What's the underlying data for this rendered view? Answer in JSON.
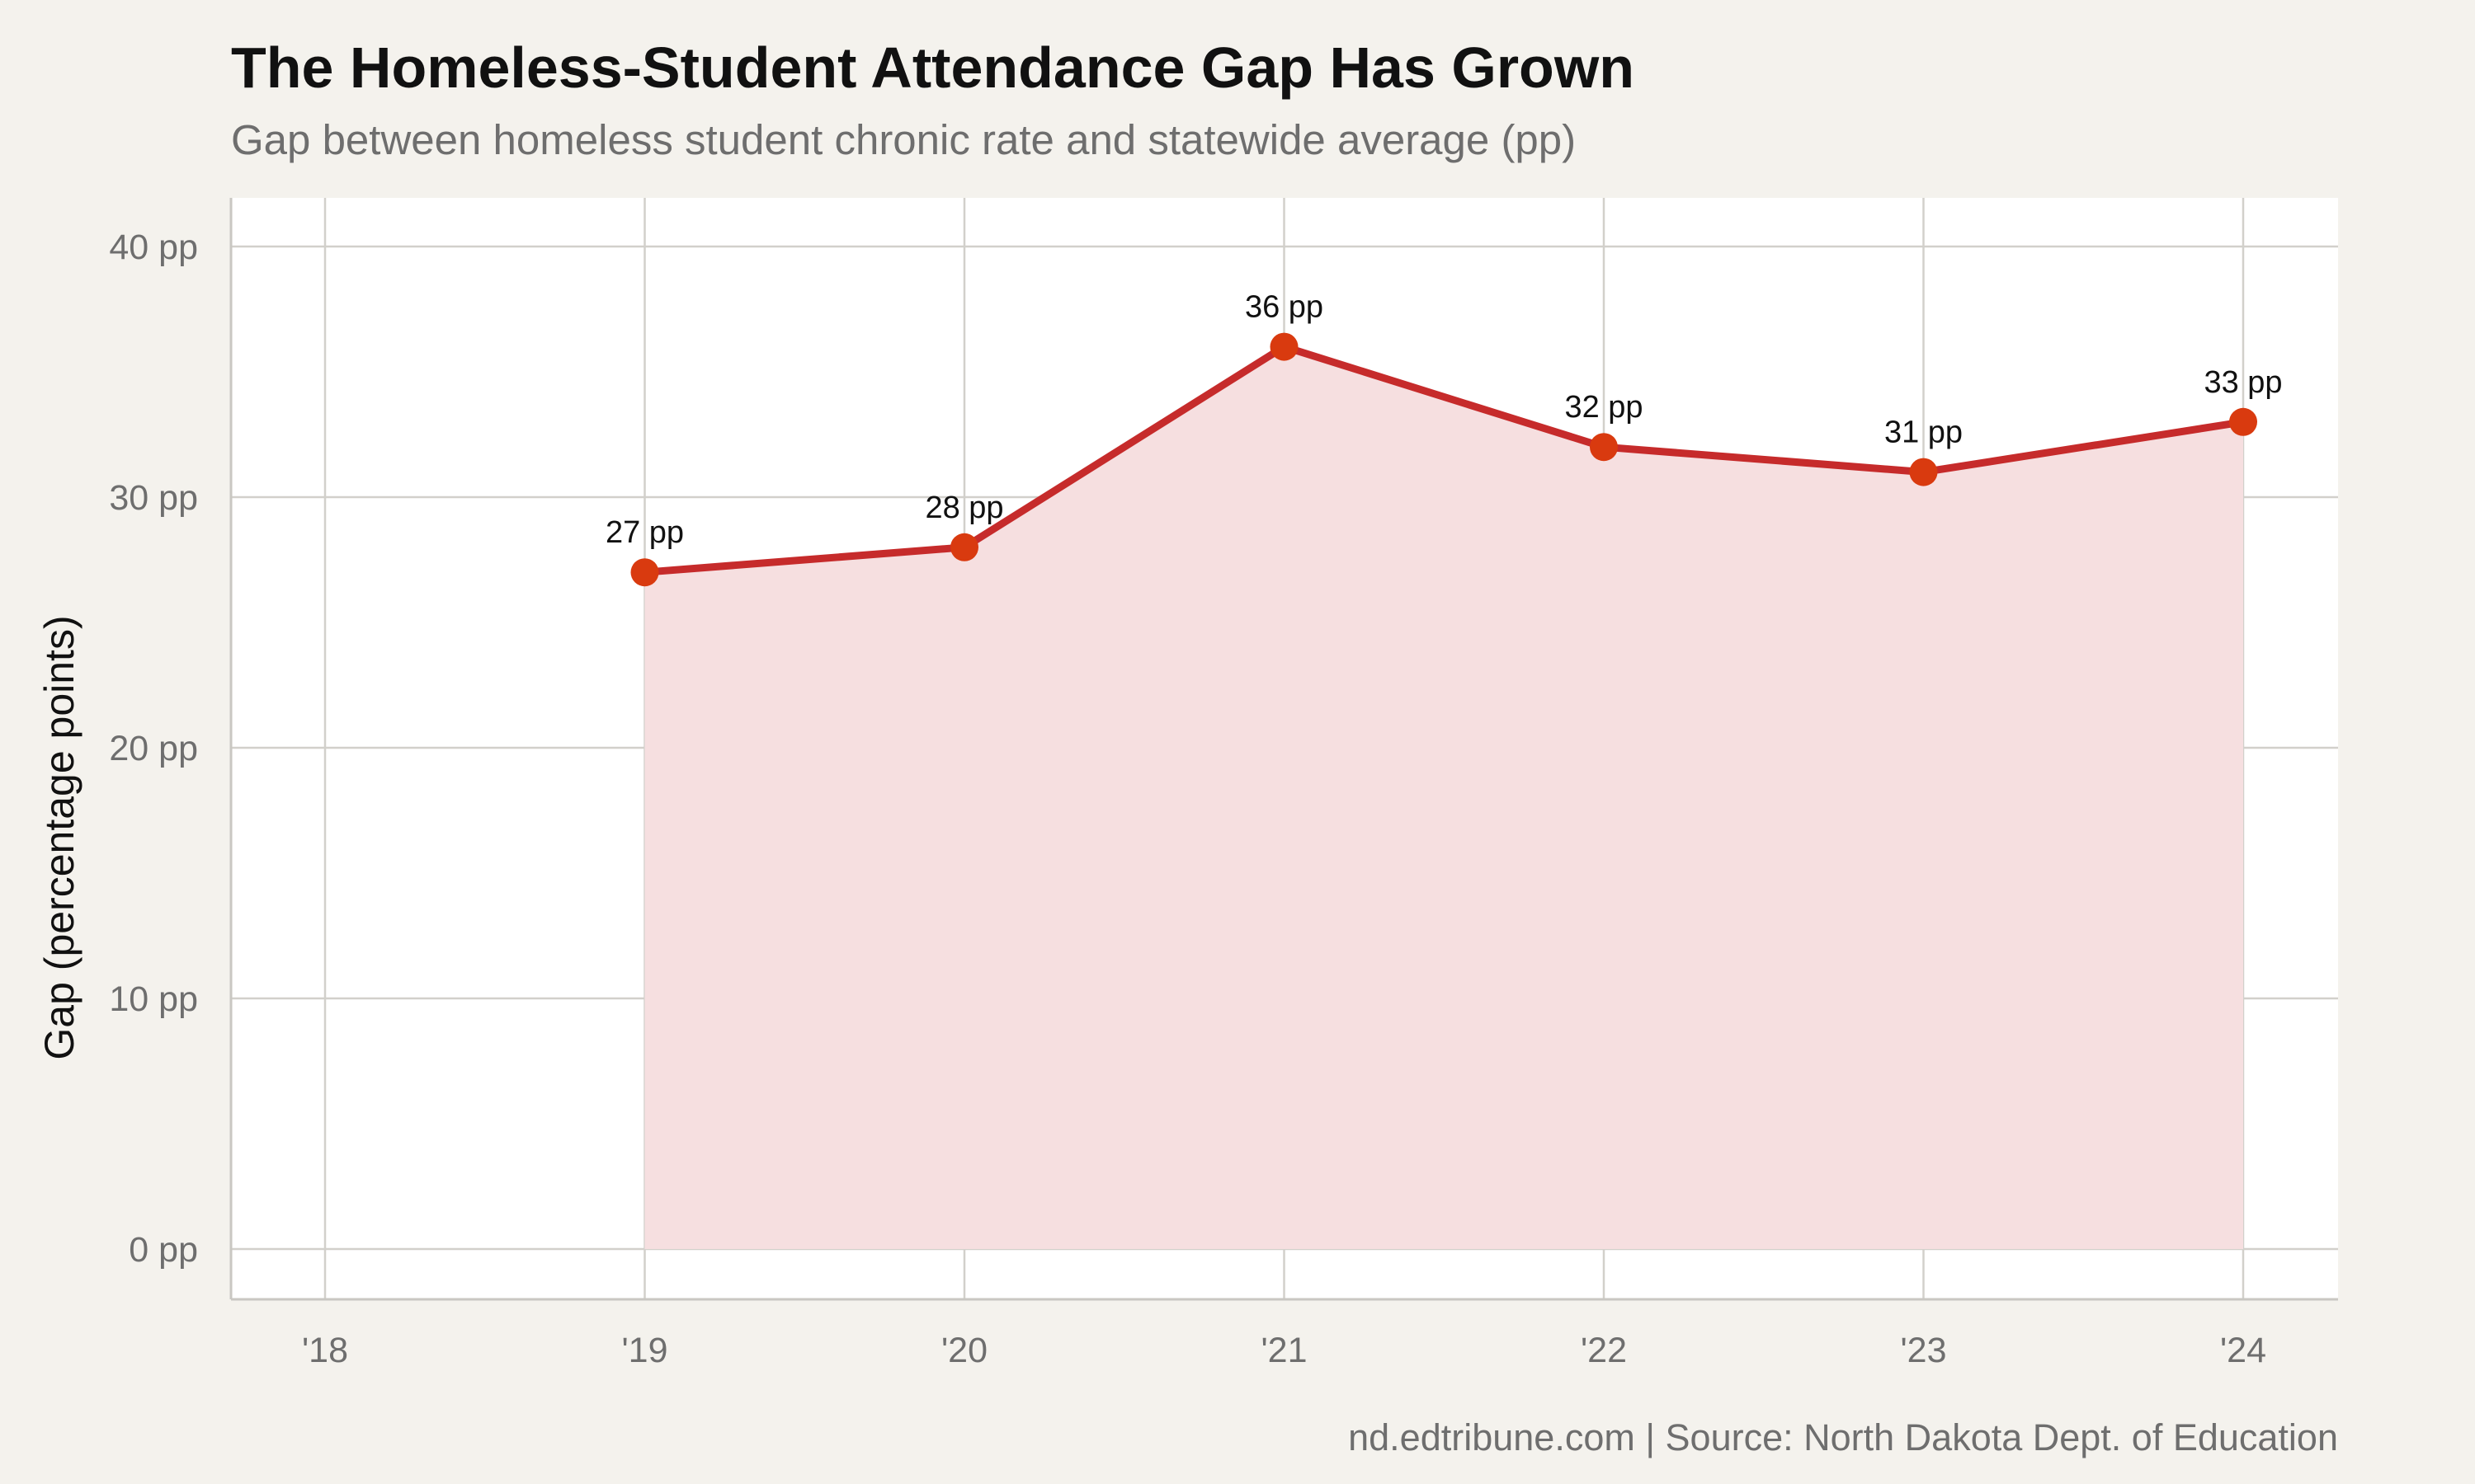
{
  "chart_data": {
    "type": "area",
    "title": "The Homeless-Student Attendance Gap Has Grown",
    "subtitle": "Gap between homeless student chronic rate and statewide average (pp)",
    "caption": "nd.edtribune.com | Source: North Dakota Dept. of Education",
    "xlabel": "",
    "ylabel": "Gap (percentage points)",
    "x_ticks": [
      "'18",
      "'19",
      "'20",
      "'21",
      "'22",
      "'23",
      "'24"
    ],
    "y_ticks": [
      "0 pp",
      "10 pp",
      "20 pp",
      "30 pp",
      "40 pp"
    ],
    "ylim": [
      0,
      40
    ],
    "grid": true,
    "series": [
      {
        "x": [
          "'19",
          "'20",
          "'21",
          "'22",
          "'23",
          "'24"
        ],
        "values": [
          27,
          28,
          36,
          32,
          31,
          33
        ],
        "labels": [
          "27 pp",
          "28 pp",
          "36 pp",
          "32 pp",
          "31 pp",
          "33 pp"
        ]
      }
    ],
    "colors": {
      "line": "#c62b2b",
      "point": "#d93a0f",
      "fill": "#f6dfe0",
      "panel": "#ffffff",
      "background": "#f4f2ed",
      "grid": "#d2d0cb"
    }
  }
}
